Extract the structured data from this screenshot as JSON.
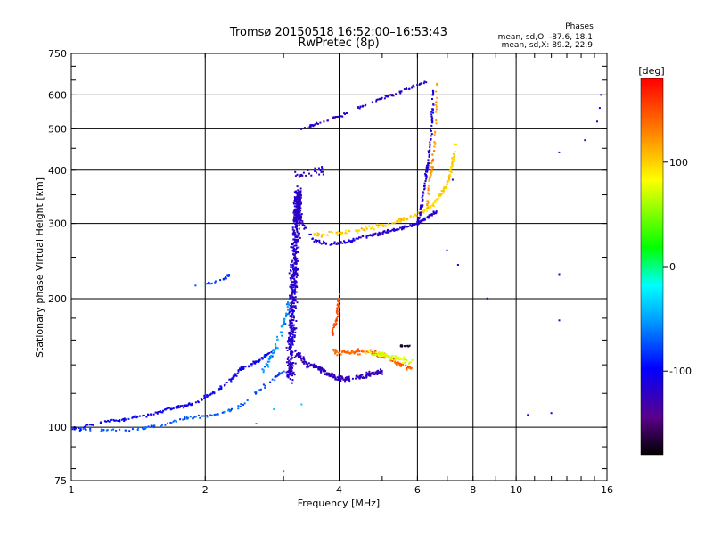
{
  "chart_data": {
    "type": "scatter",
    "title": "Tromsø 20150518 16:52:00–16:53:43",
    "subtitle": "RwPretec (8p)",
    "xlabel": "Frequency [MHz]",
    "ylabel": "Stationary phase Virtual Height [km]",
    "x_scale": "log",
    "y_scale": "log",
    "xlim": [
      1,
      16
    ],
    "ylim": [
      75,
      750
    ],
    "x_ticks": [
      1,
      2,
      4,
      6,
      8,
      10,
      16
    ],
    "x_tick_labels": [
      "1",
      "2",
      "4",
      "6",
      "8",
      "10",
      "16"
    ],
    "y_ticks": [
      75,
      100,
      200,
      300,
      400,
      500,
      600,
      750
    ],
    "y_tick_labels": [
      "75",
      "100",
      "200",
      "300",
      "400",
      "500",
      "600",
      "750"
    ],
    "grid": true,
    "phases": {
      "heading": "Phases",
      "line_o": "mean, sd,O: -87.6, 18.1",
      "line_x": "mean, sd,X:  89.2, 22.9"
    },
    "colorbar": {
      "label": "[deg]",
      "range": [
        -180,
        180
      ],
      "ticks": [
        100,
        0,
        -100
      ],
      "tick_labels": [
        "100",
        "0",
        "-100"
      ]
    },
    "traces": [
      {
        "points": [
          [
            1.0,
            100
          ],
          [
            1.05,
            99
          ],
          [
            1.1,
            101
          ],
          [
            1.2,
            103
          ],
          [
            1.3,
            104
          ],
          [
            1.4,
            106
          ],
          [
            1.5,
            107
          ],
          [
            1.6,
            109
          ],
          [
            1.7,
            111
          ],
          [
            1.8,
            112
          ],
          [
            1.9,
            114
          ],
          [
            2.0,
            118
          ],
          [
            2.1,
            121
          ],
          [
            2.2,
            125
          ],
          [
            2.3,
            130
          ],
          [
            2.4,
            137
          ],
          [
            2.5,
            139
          ],
          [
            2.6,
            142
          ],
          [
            2.7,
            145
          ],
          [
            2.8,
            150
          ]
        ],
        "phase": -105,
        "spread_x": 0.012,
        "spread_y": 0.012,
        "n": 220
      },
      {
        "points": [
          [
            1.0,
            100
          ],
          [
            1.2,
            98
          ],
          [
            1.4,
            99
          ],
          [
            1.6,
            101
          ],
          [
            1.8,
            105
          ],
          [
            2.0,
            106
          ],
          [
            2.2,
            108
          ],
          [
            2.4,
            112
          ],
          [
            2.6,
            120
          ],
          [
            2.8,
            128
          ],
          [
            3.0,
            135
          ]
        ],
        "phase": -75,
        "spread_x": 0.012,
        "spread_y": 0.012,
        "n": 120
      },
      {
        "points": [
          [
            2.7,
            135
          ],
          [
            2.85,
            150
          ],
          [
            2.95,
            165
          ],
          [
            3.05,
            185
          ],
          [
            3.1,
            200
          ]
        ],
        "phase": -55,
        "spread_x": 0.015,
        "spread_y": 0.03,
        "n": 70
      },
      {
        "points": [
          [
            1.9,
            215
          ],
          [
            2.1,
            218
          ],
          [
            2.2,
            222
          ],
          [
            2.3,
            230
          ]
        ],
        "phase": -80,
        "spread_x": 0.01,
        "spread_y": 0.01,
        "n": 22
      },
      {
        "points": [
          [
            3.1,
            130
          ],
          [
            3.15,
            200
          ],
          [
            3.2,
            300
          ],
          [
            3.25,
            360
          ]
        ],
        "phase": -120,
        "spread_x": 0.03,
        "spread_y": 0.04,
        "n": 620
      },
      {
        "points": [
          [
            3.2,
            340
          ],
          [
            3.3,
            300
          ],
          [
            3.5,
            275
          ],
          [
            3.8,
            268
          ],
          [
            4.2,
            272
          ],
          [
            4.6,
            280
          ],
          [
            5.0,
            285
          ],
          [
            5.5,
            292
          ],
          [
            6.0,
            300
          ],
          [
            6.3,
            310
          ],
          [
            6.6,
            320
          ]
        ],
        "phase": -118,
        "spread_x": 0.01,
        "spread_y": 0.012,
        "n": 200
      },
      {
        "points": [
          [
            3.5,
            282
          ],
          [
            4.0,
            285
          ],
          [
            4.5,
            290
          ],
          [
            5.0,
            297
          ],
          [
            5.5,
            305
          ],
          [
            6.0,
            315
          ],
          [
            6.5,
            330
          ],
          [
            7.0,
            370
          ],
          [
            7.2,
            420
          ],
          [
            7.3,
            460
          ]
        ],
        "phase": 100,
        "spread_x": 0.01,
        "spread_y": 0.015,
        "n": 180
      },
      {
        "points": [
          [
            6.0,
            300
          ],
          [
            6.1,
            320
          ],
          [
            6.2,
            360
          ],
          [
            6.35,
            420
          ],
          [
            6.45,
            500
          ],
          [
            6.5,
            560
          ],
          [
            6.52,
            620
          ]
        ],
        "phase": -118,
        "spread_x": 0.008,
        "spread_y": 0.01,
        "n": 110
      },
      {
        "points": [
          [
            6.3,
            330
          ],
          [
            6.4,
            380
          ],
          [
            6.55,
            450
          ],
          [
            6.6,
            520
          ],
          [
            6.62,
            640
          ]
        ],
        "phase": 120,
        "spread_x": 0.008,
        "spread_y": 0.012,
        "n": 60
      },
      {
        "points": [
          [
            3.3,
            500
          ],
          [
            3.5,
            510
          ],
          [
            3.8,
            525
          ],
          [
            4.2,
            545
          ],
          [
            4.6,
            570
          ],
          [
            5.0,
            590
          ],
          [
            5.5,
            610
          ],
          [
            5.9,
            630
          ],
          [
            6.3,
            645
          ]
        ],
        "phase": -120,
        "spread_x": 0.01,
        "spread_y": 0.01,
        "n": 90
      },
      {
        "points": [
          [
            3.2,
            150
          ],
          [
            3.4,
            140
          ],
          [
            3.6,
            138
          ],
          [
            3.8,
            133
          ],
          [
            4.0,
            130
          ],
          [
            4.2,
            130
          ],
          [
            4.6,
            132
          ],
          [
            5.0,
            135
          ]
        ],
        "phase": -125,
        "spread_x": 0.02,
        "spread_y": 0.02,
        "n": 230
      },
      {
        "points": [
          [
            3.9,
            150
          ],
          [
            4.1,
            150
          ],
          [
            4.4,
            150
          ],
          [
            4.8,
            150
          ],
          [
            5.2,
            145
          ],
          [
            5.5,
            140
          ],
          [
            5.8,
            138
          ]
        ],
        "phase": 140,
        "spread_x": 0.025,
        "spread_y": 0.02,
        "n": 120
      },
      {
        "points": [
          [
            4.6,
            150
          ],
          [
            5.0,
            148
          ],
          [
            5.4,
            145
          ],
          [
            5.8,
            142
          ]
        ],
        "phase": 70,
        "spread_x": 0.02,
        "spread_y": 0.02,
        "n": 70
      },
      {
        "points": [
          [
            3.85,
            165
          ],
          [
            3.95,
            180
          ],
          [
            4.0,
            200
          ]
        ],
        "phase": 150,
        "spread_x": 0.01,
        "spread_y": 0.04,
        "n": 40
      },
      {
        "points": [
          [
            5.5,
            155
          ],
          [
            5.8,
            155
          ]
        ],
        "phase": -170,
        "spread_x": 0.01,
        "spread_y": 0.005,
        "n": 14
      },
      {
        "points": [
          [
            3.2,
            390
          ],
          [
            3.4,
            395
          ],
          [
            3.7,
            400
          ]
        ],
        "phase": -120,
        "spread_x": 0.02,
        "spread_y": 0.04,
        "n": 25
      },
      {
        "points": [
          [
            7.2,
            380
          ],
          [
            7.4,
            240
          ],
          [
            7.0,
            260
          ],
          [
            8.6,
            200
          ],
          [
            10.6,
            107
          ],
          [
            12.0,
            108
          ],
          [
            12.5,
            440
          ],
          [
            12.5,
            228
          ],
          [
            12.5,
            178
          ],
          [
            14.3,
            470
          ],
          [
            15.2,
            520
          ],
          [
            15.5,
            600
          ],
          [
            15.4,
            560
          ]
        ],
        "phase": -110,
        "spread_x": 0.003,
        "spread_y": 0.003,
        "n": 13
      },
      {
        "points": [
          [
            2.85,
            110
          ],
          [
            3.0,
            79
          ],
          [
            3.3,
            113
          ],
          [
            2.6,
            102
          ]
        ],
        "phase": -40,
        "spread_x": 0.003,
        "spread_y": 0.003,
        "n": 4
      }
    ]
  }
}
